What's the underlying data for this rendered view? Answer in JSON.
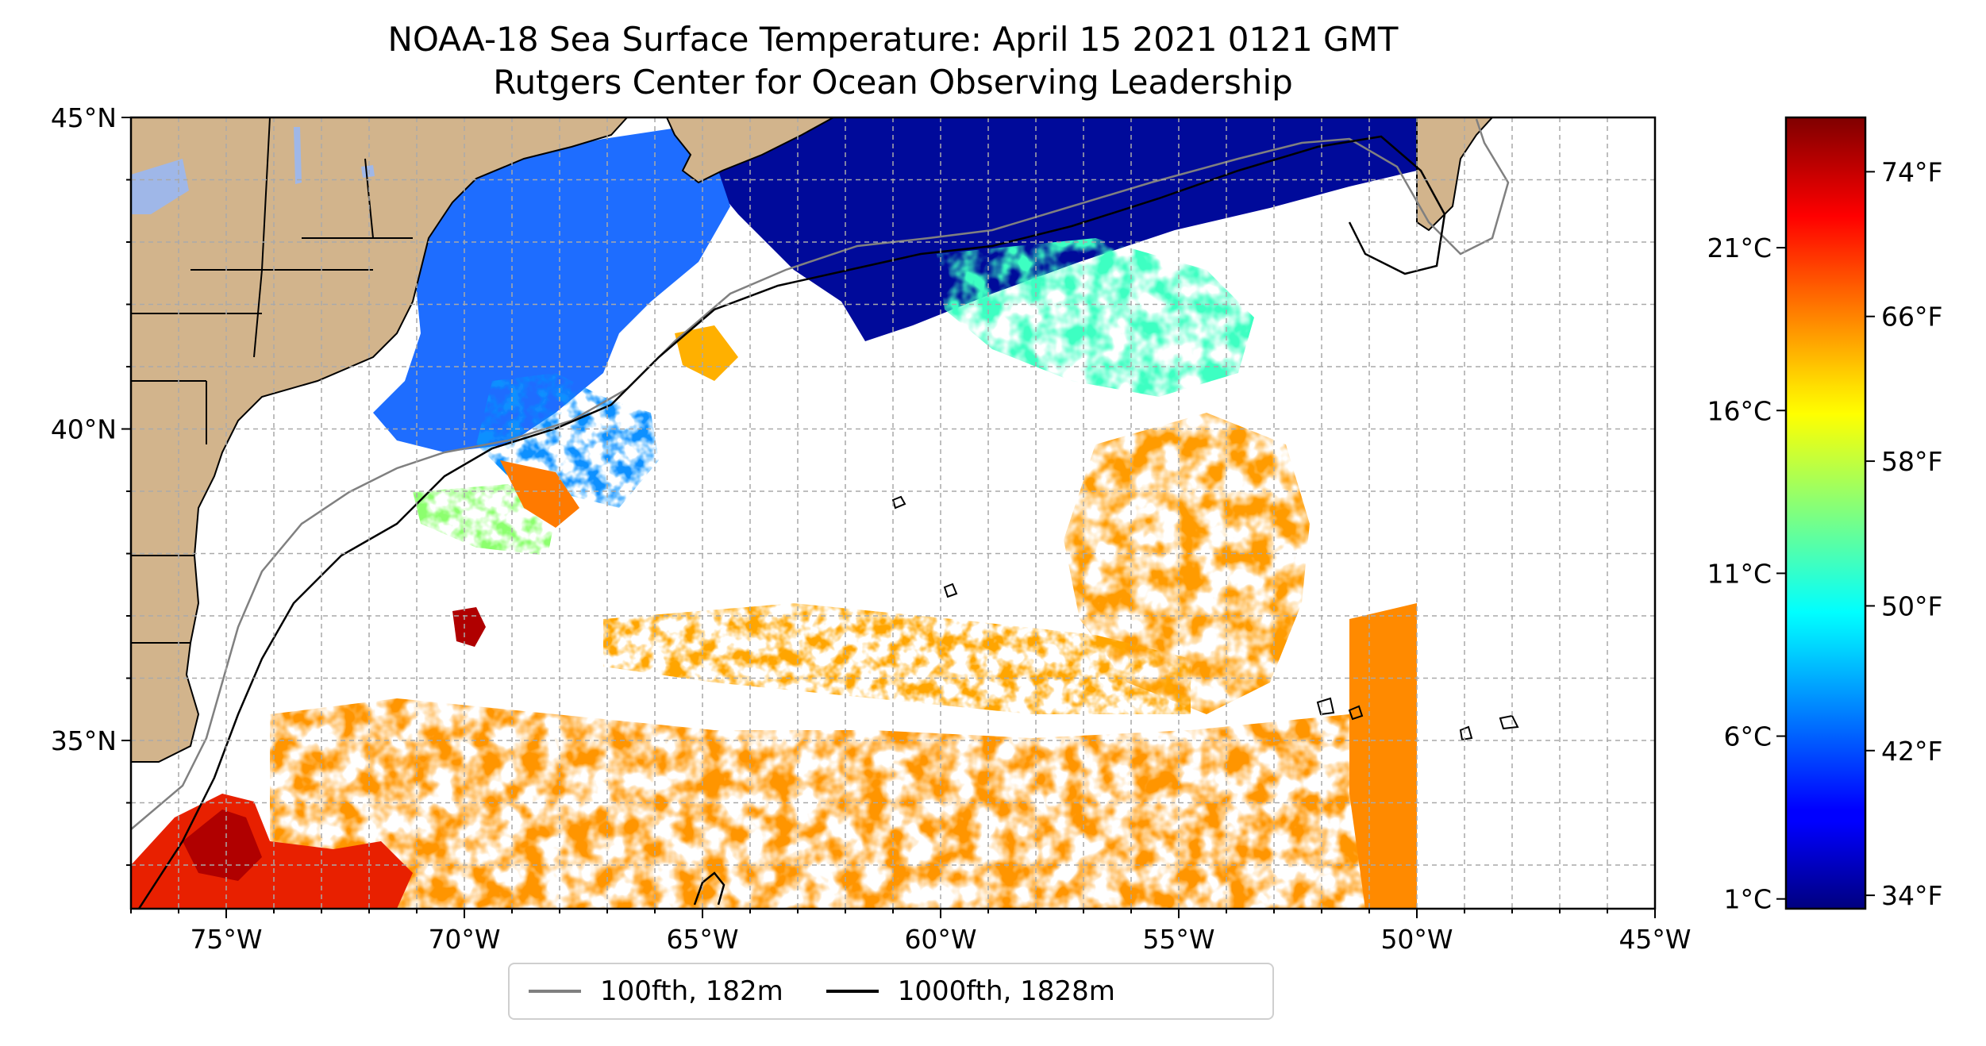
{
  "title": "NOAA-18 Sea Surface Temperature: April 15 2021 0121 GMT",
  "subtitle": "Rutgers Center for Ocean Observing Leadership",
  "axes": {
    "x_ticks": [
      {
        "lon": -75,
        "label": "75°W"
      },
      {
        "lon": -70,
        "label": "70°W"
      },
      {
        "lon": -65,
        "label": "65°W"
      },
      {
        "lon": -60,
        "label": "60°W"
      },
      {
        "lon": -55,
        "label": "55°W"
      },
      {
        "lon": -50,
        "label": "50°W"
      },
      {
        "lon": -45,
        "label": "45°W"
      }
    ],
    "y_ticks": [
      {
        "lat": 45,
        "label": "45°N"
      },
      {
        "lat": 40,
        "label": "40°N"
      },
      {
        "lat": 35,
        "label": "35°N"
      }
    ],
    "lon_range": [
      -77,
      -45
    ],
    "lat_range": [
      32.3,
      45
    ],
    "grid": true
  },
  "colorbar": {
    "colormap": "jet",
    "celsius_range": [
      0.7,
      25
    ],
    "celsius_ticks": [
      {
        "value": 1,
        "label": "1°C"
      },
      {
        "value": 6,
        "label": "6°C"
      },
      {
        "value": 11,
        "label": "11°C"
      },
      {
        "value": 16,
        "label": "16°C"
      },
      {
        "value": 21,
        "label": "21°C"
      }
    ],
    "fahrenheit_ticks": [
      {
        "value": 34,
        "label": "34°F"
      },
      {
        "value": 42,
        "label": "42°F"
      },
      {
        "value": 50,
        "label": "50°F"
      },
      {
        "value": 58,
        "label": "58°F"
      },
      {
        "value": 66,
        "label": "66°F"
      },
      {
        "value": 74,
        "label": "74°F"
      }
    ]
  },
  "legend": {
    "items": [
      {
        "label": "100fth, 182m",
        "color": "#808080"
      },
      {
        "label": "1000fth, 1828m",
        "color": "#000000"
      }
    ]
  },
  "colors": {
    "land": "#d2b48c",
    "lakes": "#9fb7e8",
    "no_data": "#ffffff",
    "isobath_100fth": "#808080",
    "isobath_1000fth": "#000000"
  }
}
